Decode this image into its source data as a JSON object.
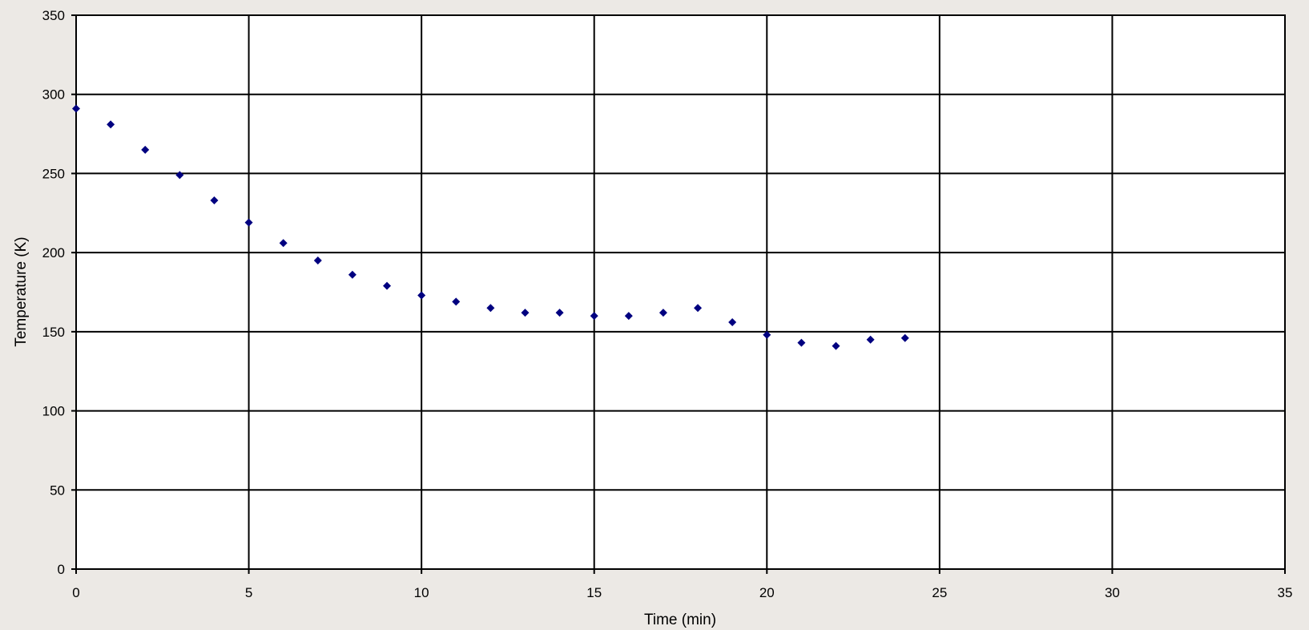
{
  "chart_data": {
    "type": "scatter",
    "title": "",
    "xlabel": "Time (min)",
    "ylabel": "Temperature (K)",
    "xlim": [
      0,
      35
    ],
    "ylim": [
      0,
      350
    ],
    "x_ticks": [
      0,
      5,
      10,
      15,
      20,
      25,
      30,
      35
    ],
    "y_ticks": [
      0,
      50,
      100,
      150,
      200,
      250,
      300,
      350
    ],
    "grid": true,
    "legend": "none",
    "marker": "diamond",
    "colors": {
      "marker": "#000080",
      "grid": "#000000",
      "plot_background": "#ffffff",
      "page_background": "#ece9e5"
    },
    "series": [
      {
        "x": [
          0,
          1,
          2,
          3,
          4,
          5,
          6,
          7,
          8,
          9,
          10,
          11,
          12,
          13,
          14,
          15,
          16,
          17,
          18,
          19,
          20,
          21,
          22,
          23,
          24
        ],
        "y": [
          291,
          281,
          265,
          249,
          233,
          219,
          206,
          195,
          186,
          179,
          173,
          169,
          165,
          162,
          162,
          160,
          160,
          162,
          165,
          156,
          148,
          143,
          141,
          145,
          146
        ]
      }
    ]
  }
}
